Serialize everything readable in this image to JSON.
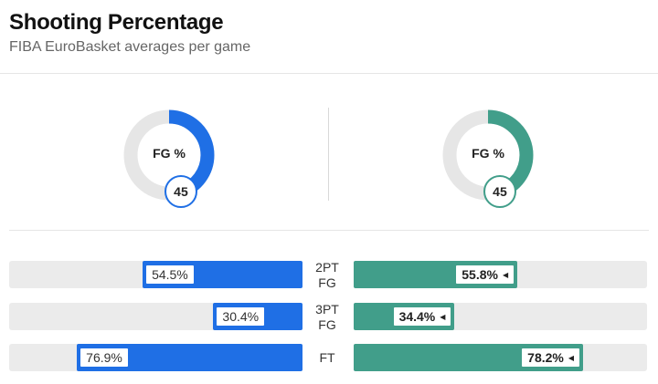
{
  "header": {
    "title": "Shooting Percentage",
    "subtitle": "FIBA EuroBasket averages per game"
  },
  "colors": {
    "left_team": "#1f6fe5",
    "right_team": "#419e8a",
    "track": "#e6e6e6"
  },
  "fg_percent": {
    "label": "FG %",
    "left": {
      "value": 45,
      "display": "45"
    },
    "right": {
      "value": 45,
      "display": "45"
    }
  },
  "rows": [
    {
      "label_line1": "2PT",
      "label_line2": "FG",
      "left_value": 54.5,
      "left_display": "54.5%",
      "right_value": 55.8,
      "right_display": "55.8%"
    },
    {
      "label_line1": "3PT",
      "label_line2": "FG",
      "left_value": 30.4,
      "left_display": "30.4%",
      "right_value": 34.4,
      "right_display": "34.4%"
    },
    {
      "label_line1": "FT",
      "label_line2": "",
      "left_value": 76.9,
      "left_display": "76.9%",
      "right_value": 78.2,
      "right_display": "78.2%"
    }
  ],
  "leader_icon": "caret-left-icon"
}
